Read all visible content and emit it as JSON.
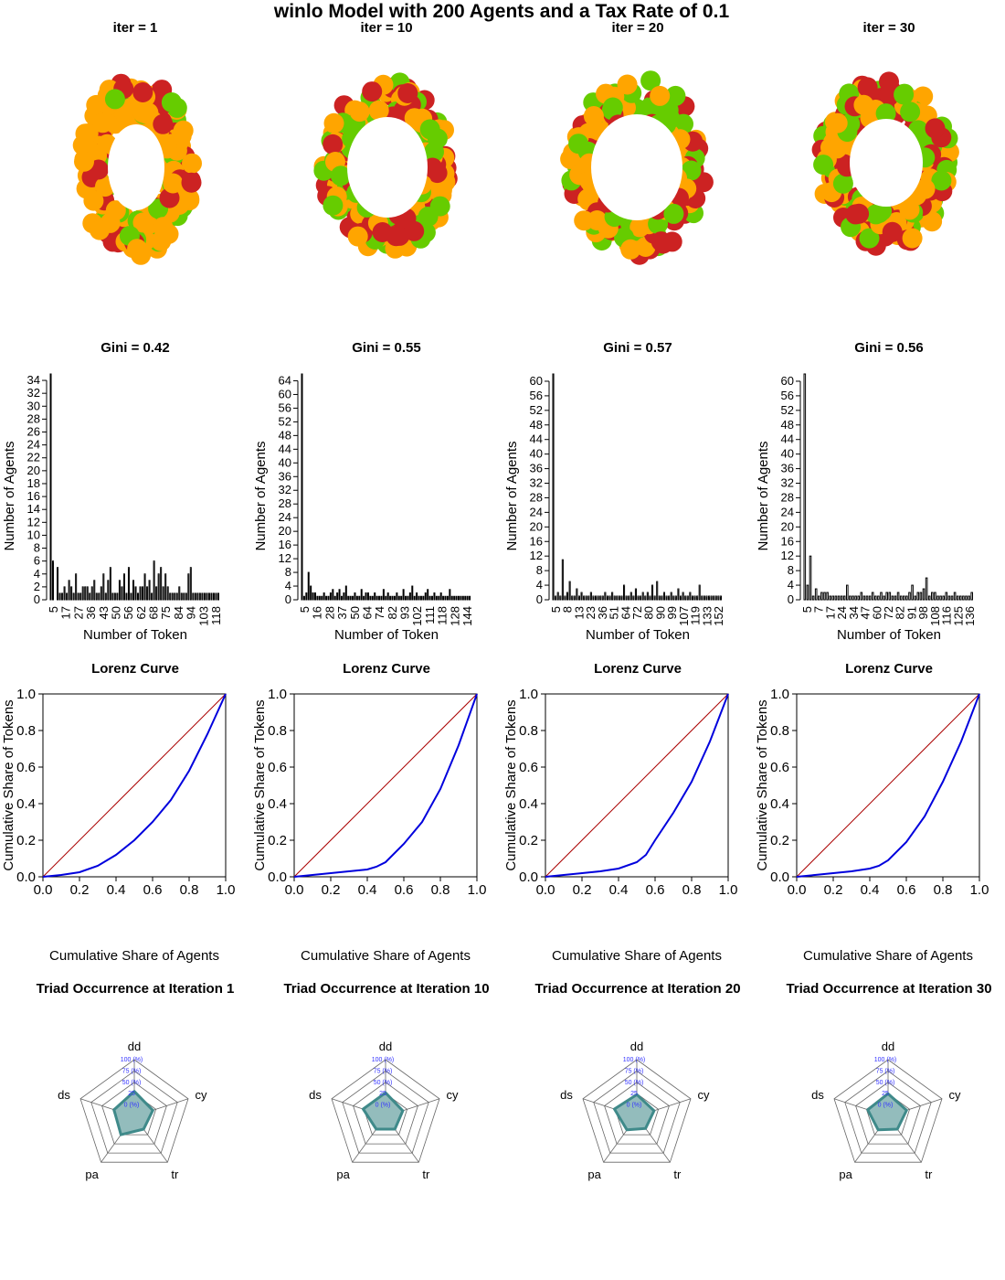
{
  "figure": {
    "title": "winlo  Model with  200  Agents and a Tax Rate of  0.1"
  },
  "colors": {
    "node_green": "#66cc00",
    "node_orange": "#ffa500",
    "node_red": "#cc2222",
    "lorenz_curve": "#0000dd",
    "equality_line": "#aa0000",
    "radar_fill": "#93bcbc",
    "radar_stroke": "#3f8a8a",
    "radar_pct_text": "#3333ff"
  },
  "chart_data": [
    {
      "type": "network",
      "title": "iter = 1",
      "node_count": 200,
      "layout": "ring",
      "node_colors": [
        "green",
        "orange",
        "red"
      ]
    },
    {
      "type": "network",
      "title": "iter = 10",
      "node_count": 200,
      "layout": "ring",
      "node_colors": [
        "green",
        "orange",
        "red"
      ]
    },
    {
      "type": "network",
      "title": "iter = 20",
      "node_count": 200,
      "layout": "ring",
      "node_colors": [
        "green",
        "orange",
        "red"
      ]
    },
    {
      "type": "network",
      "title": "iter = 30",
      "node_count": 200,
      "layout": "ring",
      "node_colors": [
        "green",
        "orange",
        "red"
      ]
    },
    {
      "type": "bar",
      "title": "Gini = 0.42",
      "xlabel": "Number of Token",
      "ylabel": "Number of Agents",
      "ylim": [
        0,
        35
      ],
      "yticks": [
        0,
        2,
        4,
        6,
        8,
        10,
        12,
        14,
        16,
        18,
        20,
        22,
        24,
        26,
        28,
        30,
        32,
        34
      ],
      "xticklabels": [
        "5",
        "17",
        "27",
        "36",
        "43",
        "50",
        "56",
        "62",
        "68",
        "75",
        "84",
        "94",
        "103",
        "118"
      ],
      "values": [
        35,
        6,
        0,
        5,
        1,
        1,
        2,
        1,
        3,
        2,
        1,
        4,
        1,
        1,
        2,
        2,
        2,
        1,
        2,
        3,
        1,
        1,
        2,
        4,
        1,
        3,
        5,
        1,
        1,
        1,
        3,
        2,
        4,
        1,
        5,
        1,
        3,
        2,
        1,
        2,
        2,
        4,
        2,
        3,
        1,
        6,
        2,
        4,
        5,
        2,
        4,
        2,
        1,
        1,
        1,
        1,
        2,
        1,
        1,
        1,
        4,
        5,
        1,
        1,
        1,
        1,
        1,
        1,
        1,
        1,
        1,
        1,
        1,
        1
      ]
    },
    {
      "type": "bar",
      "title": "Gini = 0.55",
      "xlabel": "Number of Token",
      "ylabel": "Number of Agents",
      "ylim": [
        0,
        66
      ],
      "yticks": [
        0,
        4,
        8,
        12,
        16,
        20,
        24,
        28,
        32,
        36,
        40,
        44,
        48,
        52,
        56,
        60,
        64
      ],
      "xticklabels": [
        "5",
        "16",
        "28",
        "37",
        "50",
        "64",
        "74",
        "82",
        "93",
        "102",
        "111",
        "118",
        "128",
        "144"
      ],
      "values": [
        66,
        1,
        2,
        8,
        4,
        2,
        2,
        1,
        1,
        1,
        2,
        1,
        1,
        2,
        3,
        1,
        2,
        3,
        1,
        2,
        4,
        1,
        1,
        1,
        2,
        1,
        1,
        3,
        1,
        2,
        2,
        1,
        1,
        2,
        1,
        1,
        1,
        3,
        1,
        2,
        1,
        1,
        1,
        2,
        1,
        1,
        3,
        1,
        1,
        2,
        4,
        1,
        2,
        1,
        1,
        1,
        2,
        3,
        1,
        1,
        2,
        1,
        1,
        2,
        1,
        1,
        1,
        3,
        1,
        1,
        1,
        1,
        1,
        1,
        1,
        1,
        1
      ]
    },
    {
      "type": "bar",
      "title": "Gini = 0.57",
      "xlabel": "Number of Token",
      "ylabel": "Number of Agents",
      "ylim": [
        0,
        62
      ],
      "yticks": [
        0,
        4,
        8,
        12,
        16,
        20,
        24,
        28,
        32,
        36,
        40,
        44,
        48,
        52,
        56,
        60
      ],
      "xticklabels": [
        "5",
        "8",
        "13",
        "23",
        "36",
        "51",
        "64",
        "72",
        "80",
        "90",
        "99",
        "107",
        "119",
        "133",
        "152"
      ],
      "values": [
        62,
        1,
        2,
        1,
        11,
        1,
        2,
        5,
        1,
        1,
        3,
        1,
        2,
        1,
        1,
        1,
        2,
        1,
        1,
        1,
        1,
        1,
        2,
        1,
        1,
        2,
        1,
        1,
        1,
        1,
        4,
        1,
        1,
        2,
        1,
        3,
        1,
        1,
        2,
        1,
        2,
        1,
        4,
        1,
        5,
        1,
        1,
        2,
        1,
        1,
        2,
        1,
        1,
        3,
        1,
        2,
        1,
        1,
        2,
        1,
        1,
        1,
        4,
        1,
        1,
        1,
        1,
        1,
        1,
        1,
        1,
        1
      ]
    },
    {
      "type": "bar",
      "title": "Gini = 0.56",
      "xlabel": "Number of Token",
      "ylabel": "Number of Agents",
      "ylim": [
        0,
        62
      ],
      "yticks": [
        0,
        4,
        8,
        12,
        16,
        20,
        24,
        28,
        32,
        36,
        40,
        44,
        48,
        52,
        56,
        60
      ],
      "xticklabels": [
        "5",
        "7",
        "17",
        "24",
        "34",
        "47",
        "60",
        "72",
        "82",
        "91",
        "98",
        "108",
        "116",
        "125",
        "136"
      ],
      "values": [
        62,
        4,
        12,
        1,
        3,
        1,
        2,
        2,
        2,
        1,
        1,
        1,
        1,
        1,
        1,
        4,
        1,
        1,
        1,
        1,
        2,
        1,
        1,
        1,
        2,
        1,
        1,
        2,
        1,
        2,
        2,
        1,
        1,
        2,
        1,
        1,
        1,
        2,
        4,
        1,
        2,
        2,
        3,
        6,
        1,
        2,
        2,
        1,
        1,
        1,
        2,
        1,
        1,
        2,
        1,
        1,
        1,
        1,
        1,
        2
      ]
    },
    {
      "type": "line",
      "title": "Lorenz Curve",
      "xlabel": "Cumulative Share of Agents",
      "ylabel": "Cumulative Share of Tokens",
      "xlim": [
        0,
        1
      ],
      "ylim": [
        0,
        1
      ],
      "ticks": [
        "0.0",
        "0.2",
        "0.4",
        "0.6",
        "0.8",
        "1.0"
      ],
      "series": [
        {
          "x": [
            0,
            0.1,
            0.2,
            0.3,
            0.4,
            0.5,
            0.6,
            0.7,
            0.8,
            0.9,
            1.0
          ],
          "y": [
            0,
            0.01,
            0.025,
            0.06,
            0.12,
            0.2,
            0.3,
            0.42,
            0.58,
            0.78,
            1.0
          ]
        }
      ]
    },
    {
      "type": "line",
      "title": "Lorenz Curve",
      "xlabel": "Cumulative Share of Agents",
      "ylabel": "Cumulative Share of Tokens",
      "xlim": [
        0,
        1
      ],
      "ylim": [
        0,
        1
      ],
      "ticks": [
        "0.0",
        "0.2",
        "0.4",
        "0.6",
        "0.8",
        "1.0"
      ],
      "series": [
        {
          "x": [
            0,
            0.1,
            0.2,
            0.3,
            0.4,
            0.45,
            0.5,
            0.6,
            0.7,
            0.8,
            0.9,
            1.0
          ],
          "y": [
            0,
            0.01,
            0.02,
            0.03,
            0.04,
            0.055,
            0.08,
            0.18,
            0.3,
            0.48,
            0.72,
            1.0
          ]
        }
      ]
    },
    {
      "type": "line",
      "title": "Lorenz Curve",
      "xlabel": "Cumulative Share of Agents",
      "ylabel": "Cumulative Share of Tokens",
      "xlim": [
        0,
        1
      ],
      "ylim": [
        0,
        1
      ],
      "ticks": [
        "0.0",
        "0.2",
        "0.4",
        "0.6",
        "0.8",
        "1.0"
      ],
      "series": [
        {
          "x": [
            0,
            0.1,
            0.2,
            0.3,
            0.4,
            0.5,
            0.55,
            0.6,
            0.7,
            0.8,
            0.9,
            1.0
          ],
          "y": [
            0,
            0.01,
            0.02,
            0.03,
            0.045,
            0.08,
            0.12,
            0.2,
            0.35,
            0.52,
            0.74,
            1.0
          ]
        }
      ]
    },
    {
      "type": "line",
      "title": "Lorenz Curve",
      "xlabel": "Cumulative Share of Agents",
      "ylabel": "Cumulative Share of Tokens",
      "xlim": [
        0,
        1
      ],
      "ylim": [
        0,
        1
      ],
      "ticks": [
        "0.0",
        "0.2",
        "0.4",
        "0.6",
        "0.8",
        "1.0"
      ],
      "series": [
        {
          "x": [
            0,
            0.1,
            0.2,
            0.3,
            0.4,
            0.45,
            0.5,
            0.6,
            0.7,
            0.8,
            0.9,
            1.0
          ],
          "y": [
            0,
            0.01,
            0.02,
            0.03,
            0.045,
            0.06,
            0.09,
            0.19,
            0.33,
            0.52,
            0.74,
            1.0
          ]
        }
      ]
    },
    {
      "type": "radar",
      "title": "Triad Occurrence at Iteration  1",
      "axes": [
        "dd",
        "cy",
        "tr",
        "pa",
        "ds"
      ],
      "scale_labels": [
        "0 (%)",
        "25",
        "50 (%)",
        "75 (%)",
        "100 (%)"
      ],
      "values": [
        30,
        18,
        10,
        25,
        22
      ]
    },
    {
      "type": "radar",
      "title": "Triad Occurrence at Iteration  10",
      "axes": [
        "dd",
        "cy",
        "tr",
        "pa",
        "ds"
      ],
      "scale_labels": [
        "0 (%)",
        "25",
        "50 (%)",
        "75 (%)",
        "100 (%)"
      ],
      "values": [
        27,
        15,
        10,
        10,
        27
      ]
    },
    {
      "type": "radar",
      "title": "Triad Occurrence at Iteration  20",
      "axes": [
        "dd",
        "cy",
        "tr",
        "pa",
        "ds"
      ],
      "scale_labels": [
        "0 (%)",
        "25",
        "50 (%)",
        "75 (%)",
        "100 (%)"
      ],
      "values": [
        23,
        15,
        8,
        12,
        27
      ]
    },
    {
      "type": "radar",
      "title": "Triad Occurrence at Iteration  30",
      "axes": [
        "dd",
        "cy",
        "tr",
        "pa",
        "ds"
      ],
      "scale_labels": [
        "0 (%)",
        "25",
        "50 (%)",
        "75 (%)",
        "100 (%)"
      ],
      "values": [
        25,
        18,
        10,
        12,
        22
      ]
    }
  ]
}
